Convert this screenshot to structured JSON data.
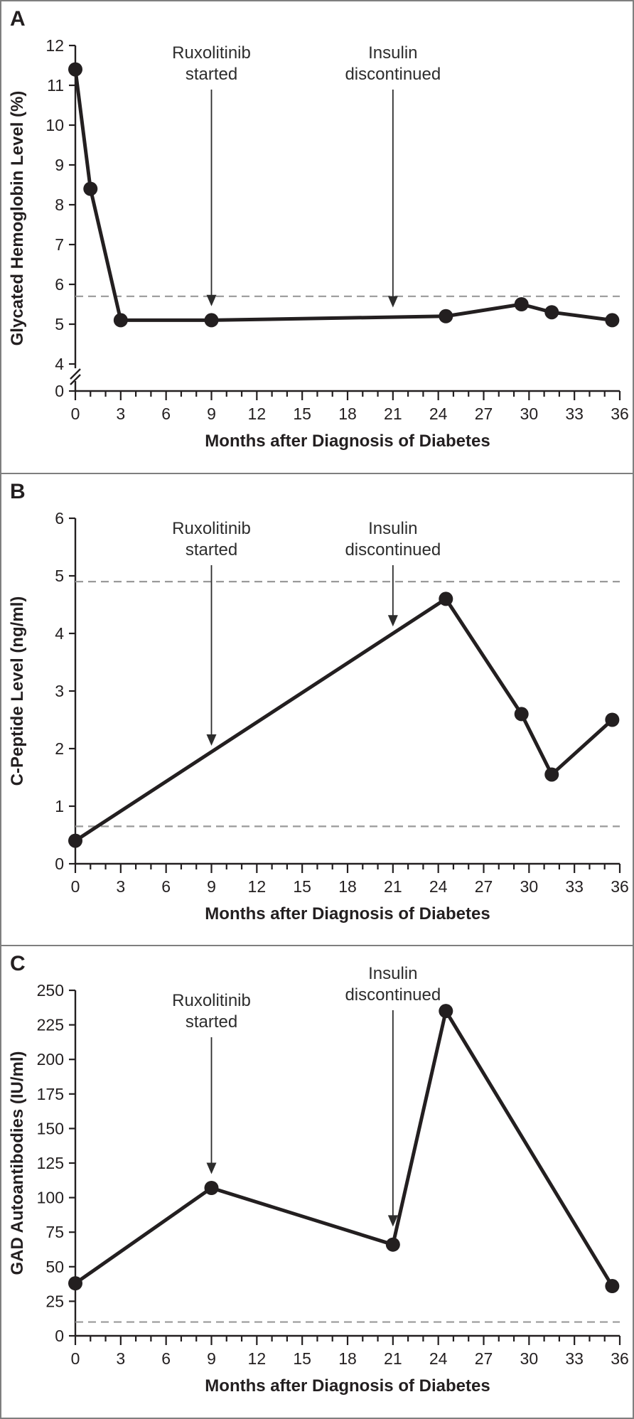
{
  "colors": {
    "ink": "#231f20",
    "dashed": "#9a9a9a",
    "annotation": "#2d2d2d",
    "frame": "#7f7f7f",
    "background": "#ffffff"
  },
  "chart_data": [
    {
      "panel": "A",
      "type": "line",
      "ylabel": "Glycated Hemoglobin Level (%)",
      "xlabel": "Months after Diagnosis of Diabetes",
      "ylim": [
        4,
        12
      ],
      "y_axis_break": true,
      "yticks": [
        0,
        4,
        5,
        6,
        7,
        8,
        9,
        10,
        11,
        12
      ],
      "x_range": [
        0,
        36
      ],
      "x_tick_labels": [
        0,
        3,
        6,
        9,
        12,
        15,
        18,
        21,
        24,
        27,
        30,
        33,
        36
      ],
      "x_minor_tick_step": 1,
      "x": [
        0,
        1,
        3,
        9,
        24.5,
        29.5,
        31.5,
        35.5
      ],
      "y": [
        11.4,
        8.4,
        5.1,
        5.1,
        5.2,
        5.5,
        5.3,
        5.1
      ],
      "reference_lines": [
        5.7
      ],
      "annotations": [
        {
          "label_lines": [
            "Ruxolitinib",
            "started"
          ],
          "x": 9,
          "arrow_tip_y": 5.45
        },
        {
          "label_lines": [
            "Insulin",
            "discontinued"
          ],
          "x": 21,
          "arrow_tip_y": 5.42
        }
      ]
    },
    {
      "panel": "B",
      "type": "line",
      "ylabel": "C-Peptide Level (ng/ml)",
      "xlabel": "Months after Diagnosis of Diabetes",
      "ylim": [
        0,
        6
      ],
      "y_axis_break": false,
      "yticks": [
        0,
        1,
        2,
        3,
        4,
        5,
        6
      ],
      "x_range": [
        0,
        36
      ],
      "x_tick_labels": [
        0,
        3,
        6,
        9,
        12,
        15,
        18,
        21,
        24,
        27,
        30,
        33,
        36
      ],
      "x_minor_tick_step": 1,
      "x": [
        0,
        24.5,
        29.5,
        31.5,
        35.5
      ],
      "y": [
        0.4,
        4.6,
        2.6,
        1.55,
        2.5
      ],
      "reference_lines": [
        4.9,
        0.65
      ],
      "annotations": [
        {
          "label_lines": [
            "Ruxolitinib",
            "started"
          ],
          "x": 9,
          "arrow_tip_y": 2.05
        },
        {
          "label_lines": [
            "Insulin",
            "discontinued"
          ],
          "x": 21,
          "arrow_tip_y": 4.12
        }
      ]
    },
    {
      "panel": "C",
      "type": "line",
      "ylabel": "GAD Autoantibodies (IU/ml)",
      "xlabel": "Months after Diagnosis of Diabetes",
      "ylim": [
        0,
        250
      ],
      "y_axis_break": false,
      "yticks": [
        0,
        25,
        50,
        75,
        100,
        125,
        150,
        175,
        200,
        225,
        250
      ],
      "x_range": [
        0,
        36
      ],
      "x_tick_labels": [
        0,
        3,
        6,
        9,
        12,
        15,
        18,
        21,
        24,
        27,
        30,
        33,
        36
      ],
      "x_minor_tick_step": 1,
      "x": [
        0,
        9,
        21,
        24.5,
        35.5
      ],
      "y": [
        38,
        107,
        66,
        235,
        36
      ],
      "reference_lines": [
        10
      ],
      "annotations": [
        {
          "label_lines": [
            "Ruxolitinib",
            "started"
          ],
          "x": 9,
          "arrow_tip_y": 117
        },
        {
          "label_lines": [
            "Insulin",
            "discontinued"
          ],
          "x": 21,
          "arrow_tip_y": 79
        }
      ]
    }
  ]
}
